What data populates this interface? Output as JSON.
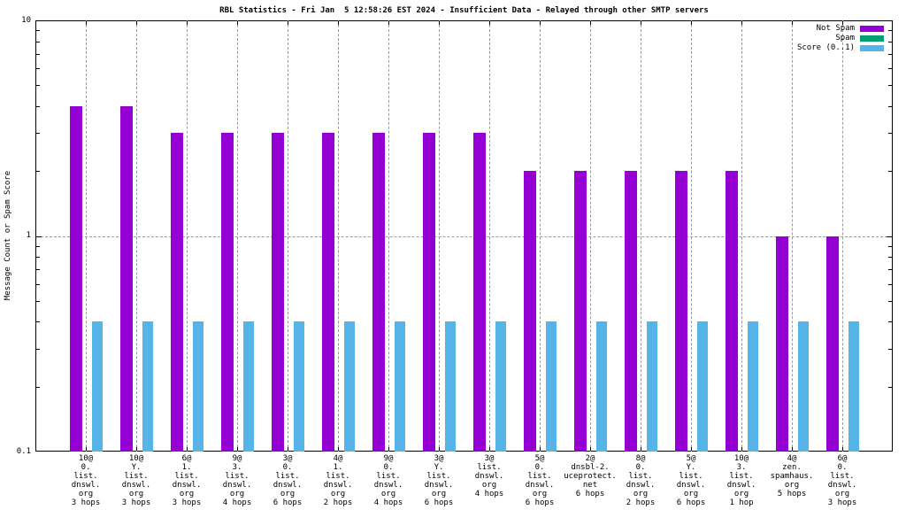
{
  "title": "RBL Statistics - Fri Jan  5 12:58:26 EST 2024 - Insufficient Data - Relayed through other SMTP servers",
  "y_axis": {
    "label": "Message Count or Spam Score",
    "tick_labels": [
      "10",
      "1",
      "0.1"
    ]
  },
  "legend": {
    "items": [
      {
        "label": "Not Spam",
        "color": "#9400d3"
      },
      {
        "label": "Spam",
        "color": "#009e73"
      },
      {
        "label": "Score (0..1)",
        "color": "#56b4e9"
      }
    ]
  },
  "chart_data": {
    "type": "bar",
    "title": "RBL Statistics - Fri Jan  5 12:58:26 EST 2024 - Insufficient Data - Relayed through other SMTP servers",
    "xlabel": "",
    "ylabel": "Message Count or Spam Score",
    "yscale": "log",
    "ylim": [
      0.1,
      10
    ],
    "grid": true,
    "legend_position": "top-right",
    "categories": [
      "10@0.list.dnswl.org 3 hops",
      "10@Y.list.dnswl.org 3 hops",
      "6@1.list.dnswl.org 3 hops",
      "9@3.list.dnswl.org 4 hops",
      "3@0.list.dnswl.org 6 hops",
      "4@1.list.dnswl.org 2 hops",
      "9@0.list.dnswl.org 4 hops",
      "3@Y.list.dnswl.org 6 hops",
      "3@list.dnswl.org 4 hops",
      "5@0.list.dnswl.org 6 hops",
      "2@dnsbl-2.uceprotect.net 6 hops",
      "8@0.list.dnswl.org 2 hops",
      "5@Y.list.dnswl.org 6 hops",
      "10@3.list.dnswl.org 1 hop",
      "4@zen.spamhaus.org 5 hops",
      "6@0.list.dnswl.org 3 hops"
    ],
    "categories_lines": [
      [
        "10@",
        "0.",
        "list.",
        "dnswl.",
        "org",
        "3 hops"
      ],
      [
        "10@",
        "Y.",
        "list.",
        "dnswl.",
        "org",
        "3 hops"
      ],
      [
        "6@",
        "1.",
        "list.",
        "dnswl.",
        "org",
        "3 hops"
      ],
      [
        "9@",
        "3.",
        "list.",
        "dnswl.",
        "org",
        "4 hops"
      ],
      [
        "3@",
        "0.",
        "list.",
        "dnswl.",
        "org",
        "6 hops"
      ],
      [
        "4@",
        "1.",
        "list.",
        "dnswl.",
        "org",
        "2 hops"
      ],
      [
        "9@",
        "0.",
        "list.",
        "dnswl.",
        "org",
        "4 hops"
      ],
      [
        "3@",
        "Y.",
        "list.",
        "dnswl.",
        "org",
        "6 hops"
      ],
      [
        "3@",
        "list.",
        "dnswl.",
        "org",
        "4 hops"
      ],
      [
        "5@",
        "0.",
        "list.",
        "dnswl.",
        "org",
        "6 hops"
      ],
      [
        "2@",
        "dnsbl-2.",
        "uceprotect.",
        "net",
        "6 hops"
      ],
      [
        "8@",
        "0.",
        "list.",
        "dnswl.",
        "org",
        "2 hops"
      ],
      [
        "5@",
        "Y.",
        "list.",
        "dnswl.",
        "org",
        "6 hops"
      ],
      [
        "10@",
        "3.",
        "list.",
        "dnswl.",
        "org",
        "1 hop"
      ],
      [
        "4@",
        "zen.",
        "spamhaus.",
        "org",
        "5 hops"
      ],
      [
        "6@",
        "0.",
        "list.",
        "dnswl.",
        "org",
        "3 hops"
      ]
    ],
    "series": [
      {
        "name": "Not Spam",
        "color": "#9400d3",
        "values": [
          4,
          4,
          3,
          3,
          3,
          3,
          3,
          3,
          3,
          2,
          2,
          2,
          2,
          2,
          1,
          1
        ]
      },
      {
        "name": "Spam",
        "color": "#009e73",
        "values": [
          0,
          0,
          0,
          0,
          0,
          0,
          0,
          0,
          0,
          0,
          0,
          0,
          0,
          0,
          0,
          0
        ]
      },
      {
        "name": "Score (0..1)",
        "color": "#56b4e9",
        "values": [
          0.4,
          0.4,
          0.4,
          0.4,
          0.4,
          0.4,
          0.4,
          0.4,
          0.4,
          0.4,
          0.4,
          0.4,
          0.4,
          0.4,
          0.4,
          0.4
        ]
      }
    ]
  }
}
